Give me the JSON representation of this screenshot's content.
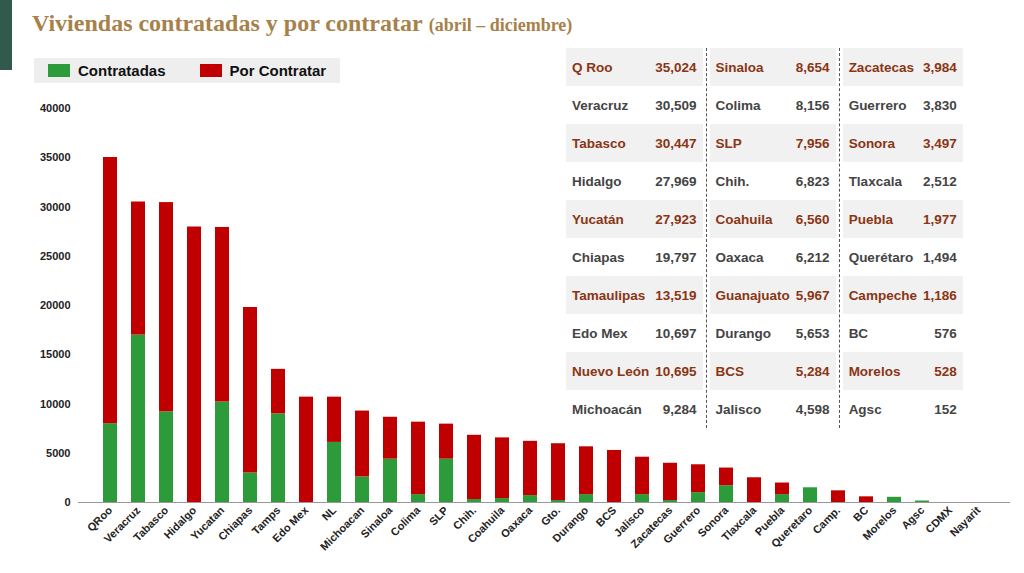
{
  "chart_data": {
    "type": "bar",
    "title": "Viviendas contratadas y por contratar",
    "subtitle": "(abril – diciembre)",
    "stacked": true,
    "legend": "top-left",
    "grid": false,
    "categories": [
      "QRoo",
      "Veracruz",
      "Tabasco",
      "Hidalgo",
      "Yucatan",
      "Chiapas",
      "Tamps",
      "Edo Mex",
      "NL",
      "Michoacan",
      "Sinaloa",
      "Colima",
      "SLP",
      "Chih.",
      "Coahuila",
      "Oaxaca",
      "Gto.",
      "Durango",
      "BCS",
      "Jalisco",
      "Zacatecas",
      "Guerrero",
      "Sonora",
      "Tlaxcala",
      "Puebla",
      "Queretaro",
      "Camp.",
      "BC",
      "Morelos",
      "Agsc",
      "CDMX",
      "Nayarit"
    ],
    "series": [
      {
        "name": "Contratadas",
        "color": "#2e9b3a",
        "values": [
          8000,
          17000,
          9200,
          0,
          10200,
          3000,
          9000,
          0,
          6100,
          2600,
          4400,
          800,
          4400,
          300,
          400,
          700,
          200,
          800,
          0,
          800,
          200,
          1000,
          1700,
          0,
          800,
          1494,
          0,
          0,
          528,
          152,
          0,
          0
        ]
      },
      {
        "name": "Por Contratar",
        "color": "#c00000",
        "values": [
          27024,
          13509,
          21247,
          27969,
          17723,
          16797,
          4519,
          10697,
          4595,
          6684,
          4254,
          7356,
          3556,
          6523,
          6160,
          5512,
          5767,
          4853,
          5284,
          3798,
          3784,
          2830,
          1797,
          2512,
          1177,
          0,
          1186,
          576,
          0,
          0,
          0,
          0
        ]
      }
    ],
    "ylim": [
      0,
      40000
    ],
    "yticks": [
      0,
      5000,
      10000,
      15000,
      20000,
      25000,
      30000,
      35000,
      40000
    ]
  },
  "table": {
    "columns": [
      [
        [
          "Q Roo",
          "35,024"
        ],
        [
          "Veracruz",
          "30,509"
        ],
        [
          "Tabasco",
          "30,447"
        ],
        [
          "Hidalgo",
          "27,969"
        ],
        [
          "Yucatán",
          "27,923"
        ],
        [
          "Chiapas",
          "19,797"
        ],
        [
          "Tamaulipas",
          "13,519"
        ],
        [
          "Edo Mex",
          "10,697"
        ],
        [
          "Nuevo León",
          "10,695"
        ],
        [
          "Michoacán",
          "9,284"
        ]
      ],
      [
        [
          "Sinaloa",
          "8,654"
        ],
        [
          "Colima",
          "8,156"
        ],
        [
          "SLP",
          "7,956"
        ],
        [
          "Chih.",
          "6,823"
        ],
        [
          "Coahuila",
          "6,560"
        ],
        [
          "Oaxaca",
          "6,212"
        ],
        [
          "Guanajuato",
          "5,967"
        ],
        [
          "Durango",
          "5,653"
        ],
        [
          "BCS",
          "5,284"
        ],
        [
          "Jalisco",
          "4,598"
        ]
      ],
      [
        [
          "Zacatecas",
          "3,984"
        ],
        [
          "Guerrero",
          "3,830"
        ],
        [
          "Sonora",
          "3,497"
        ],
        [
          "Tlaxcala",
          "2,512"
        ],
        [
          "Puebla",
          "1,977"
        ],
        [
          "Querétaro",
          "1,494"
        ],
        [
          "Campeche",
          "1,186"
        ],
        [
          "BC",
          "576"
        ],
        [
          "Morelos",
          "528"
        ],
        [
          "Agsc",
          "152"
        ]
      ]
    ]
  }
}
